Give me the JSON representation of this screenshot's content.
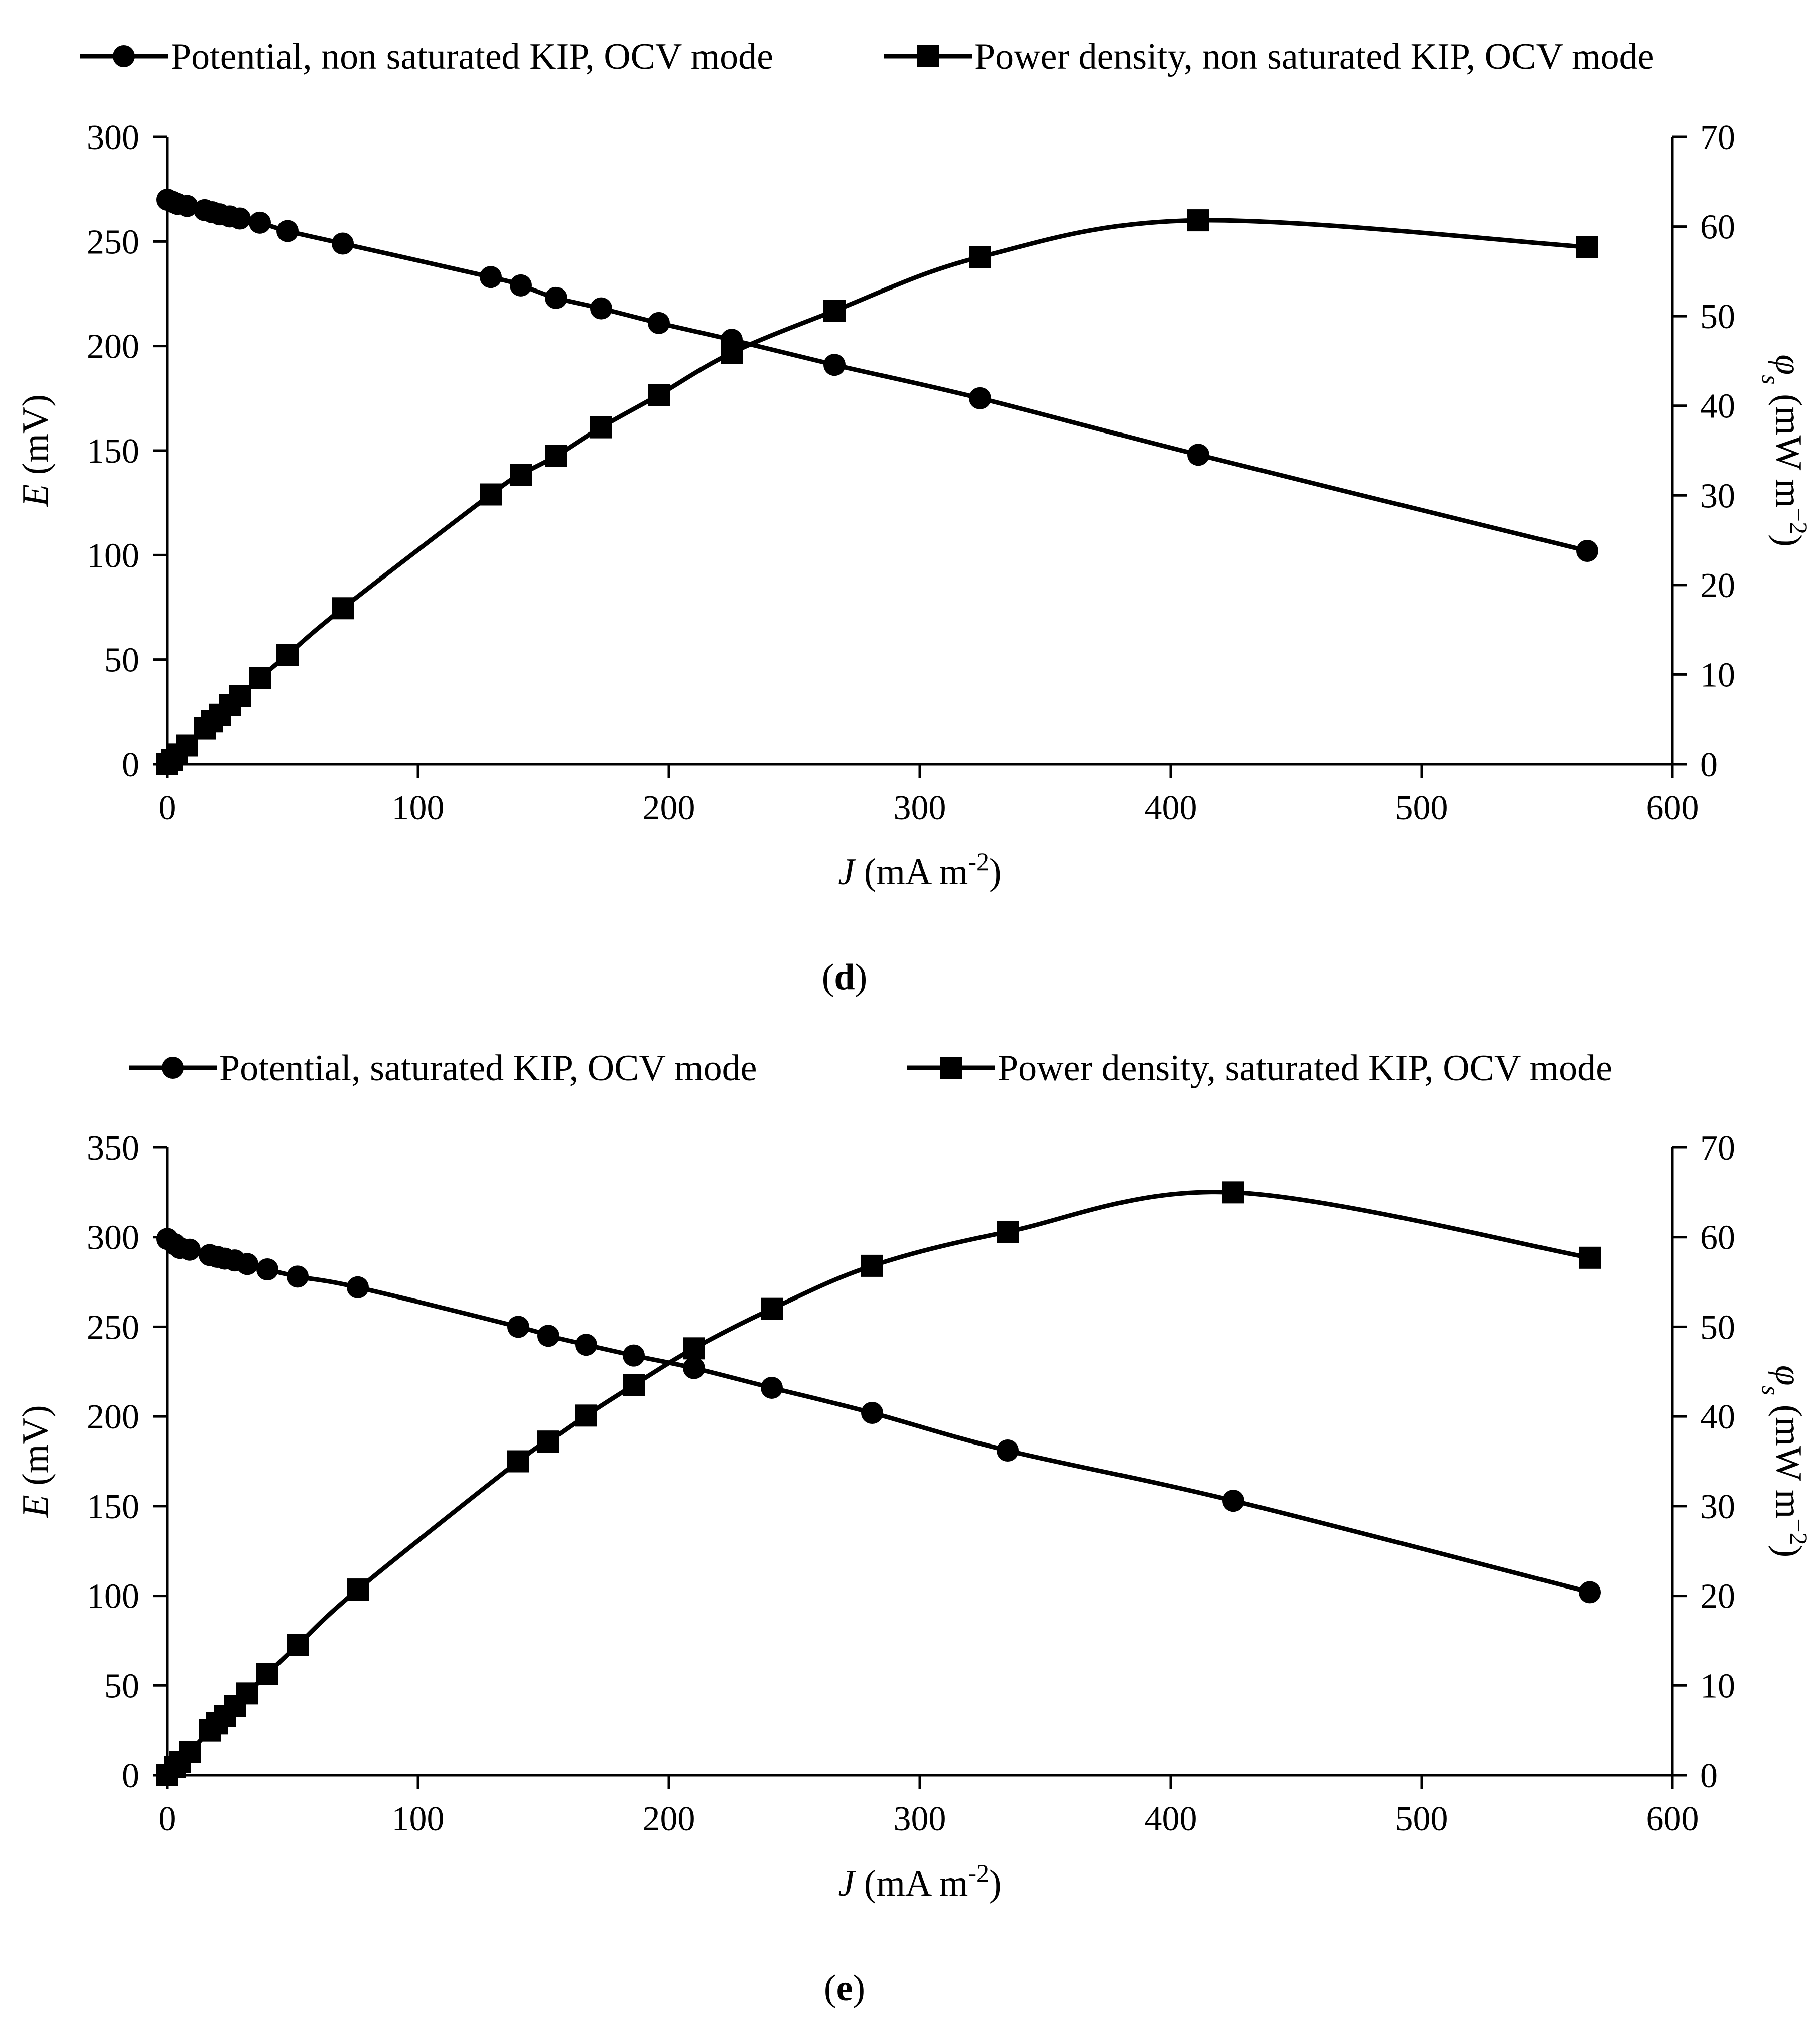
{
  "colors": {
    "ink": "#000000",
    "background": "#ffffff"
  },
  "panels": [
    {
      "label_open": "(",
      "label_letter": "d",
      "label_close": ")",
      "legend": [
        {
          "marker": "circle",
          "text": "Potential, non saturated KIP, OCV mode"
        },
        {
          "marker": "square",
          "text": "Power density, non saturated KIP, OCV mode"
        }
      ],
      "x_axis": {
        "var": "J",
        "unit_text": " (mA m",
        "sup": "-2",
        "close": ")"
      },
      "y_left": {
        "var": "E",
        "unit_text": " (mV)"
      },
      "y_right": {
        "var": "φ",
        "sub": "s",
        "unit_text": " (mW m",
        "sup": "−2",
        "close": ")"
      }
    },
    {
      "label_open": "(",
      "label_letter": "e",
      "label_close": ")",
      "legend": [
        {
          "marker": "circle",
          "text": "Potential, saturated KIP, OCV mode"
        },
        {
          "marker": "square",
          "text": "Power density, saturated KIP, OCV mode"
        }
      ],
      "x_axis": {
        "var": "J",
        "unit_text": " (mA m",
        "sup": "-2",
        "close": ")"
      },
      "y_left": {
        "var": "E",
        "unit_text": " (mV)"
      },
      "y_right": {
        "var": "φ",
        "sub": "s",
        "unit_text": " (mW m",
        "sup": "−2",
        "close": ")"
      }
    }
  ],
  "chart_data": [
    {
      "type": "line",
      "title": "(d)",
      "xlabel": "J (mA m-2)",
      "ylabel": "E (mV)",
      "y2label": "φs (mW m−2)",
      "xlim": [
        0,
        600
      ],
      "ylim": [
        0,
        300
      ],
      "y2lim": [
        0,
        70
      ],
      "xticks": [
        0,
        100,
        200,
        300,
        400,
        500,
        600
      ],
      "yticks": [
        0,
        50,
        100,
        150,
        200,
        250,
        300
      ],
      "y2ticks": [
        0,
        10,
        20,
        30,
        40,
        50,
        60,
        70
      ],
      "grid": false,
      "legend_position": "top",
      "series": [
        {
          "name": "Potential, non saturated KIP, OCV mode",
          "axis": "left",
          "marker": "circle",
          "x": [
            0,
            2,
            4,
            8,
            15,
            18,
            21,
            25,
            29,
            37,
            48,
            70,
            129,
            141,
            155,
            173,
            196,
            225,
            266,
            324,
            411,
            566
          ],
          "y": [
            270,
            269,
            268,
            267,
            265,
            264,
            263,
            262,
            261,
            259,
            255,
            249,
            233,
            229,
            223,
            218,
            211,
            203,
            191,
            175,
            148,
            102
          ]
        },
        {
          "name": "Power density, non saturated KIP, OCV mode",
          "axis": "right",
          "marker": "square",
          "x": [
            0,
            2,
            4,
            8,
            15,
            18,
            21,
            25,
            29,
            37,
            48,
            70,
            129,
            141,
            155,
            173,
            196,
            225,
            266,
            324,
            411,
            566
          ],
          "y": [
            0,
            0.5,
            1.1,
            2.1,
            4.0,
            4.8,
            5.5,
            6.6,
            7.6,
            9.6,
            12.2,
            17.4,
            30.1,
            32.3,
            34.4,
            37.6,
            41.2,
            45.9,
            50.6,
            56.6,
            60.7,
            57.7
          ]
        }
      ]
    },
    {
      "type": "line",
      "title": "(e)",
      "xlabel": "J (mA m-2)",
      "ylabel": "E (mV)",
      "y2label": "φs (mW m−2)",
      "xlim": [
        0,
        600
      ],
      "ylim": [
        0,
        350
      ],
      "y2lim": [
        0,
        70
      ],
      "xticks": [
        0,
        100,
        200,
        300,
        400,
        500,
        600
      ],
      "yticks": [
        0,
        50,
        100,
        150,
        200,
        250,
        300,
        350
      ],
      "y2ticks": [
        0,
        10,
        20,
        30,
        40,
        50,
        60,
        70
      ],
      "grid": false,
      "legend_position": "top",
      "series": [
        {
          "name": "Potential, saturated KIP, OCV mode",
          "axis": "left",
          "marker": "circle",
          "x": [
            0,
            3,
            5,
            9,
            17,
            20,
            23,
            27,
            32,
            40,
            52,
            76,
            140,
            152,
            167,
            186,
            210,
            241,
            281,
            335,
            425,
            567
          ],
          "y": [
            299,
            296,
            294,
            293,
            290,
            289,
            288,
            287,
            285,
            282,
            278,
            272,
            250,
            245,
            240,
            234,
            227,
            216,
            202,
            181,
            153,
            102
          ]
        },
        {
          "name": "Power density, saturated KIP, OCV mode",
          "axis": "right",
          "marker": "square",
          "x": [
            0,
            3,
            5,
            9,
            17,
            20,
            23,
            27,
            32,
            40,
            52,
            76,
            140,
            152,
            167,
            186,
            210,
            241,
            281,
            335,
            425,
            567
          ],
          "y": [
            0,
            0.9,
            1.5,
            2.6,
            5.0,
            5.8,
            6.6,
            7.7,
            9.1,
            11.3,
            14.5,
            20.7,
            35.0,
            37.2,
            40.1,
            43.5,
            47.6,
            52.0,
            56.8,
            60.6,
            65.0,
            57.7
          ]
        }
      ]
    }
  ]
}
